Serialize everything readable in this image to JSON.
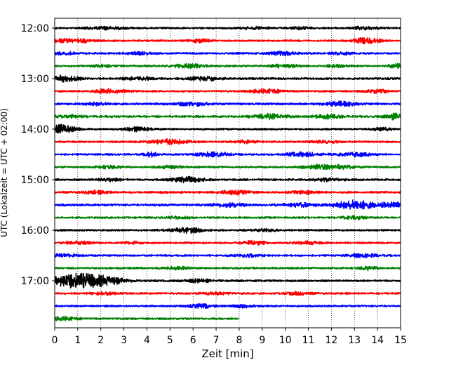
{
  "chart_data": {
    "type": "line",
    "title": "",
    "xlabel": "Zeit  [min]",
    "ylabel": "UTC (Lokalzeit = UTC + 02:00)",
    "xlim": [
      0,
      15
    ],
    "x_ticks": [
      "0",
      "1",
      "2",
      "3",
      "4",
      "5",
      "6",
      "7",
      "8",
      "9",
      "10",
      "11",
      "12",
      "13",
      "14",
      "15"
    ],
    "y_ticks": [
      "12:00",
      "13:00",
      "14:00",
      "15:00",
      "16:00",
      "17:00"
    ],
    "grid": "vertical dotted lines at each minute",
    "legend": "none",
    "colors": [
      "#000000",
      "#ff0000",
      "#0000ff",
      "#008000"
    ],
    "rows_per_hour": 4,
    "row_interval_min": 15,
    "start_time": "12:00",
    "last_row_end_min": 8,
    "rows": [
      {
        "start": "12:00",
        "color": "#000000",
        "noise": 0.9,
        "bursts": [
          [
            2.2,
            1.2,
            0.6
          ],
          [
            8.6,
            1.0,
            0.4
          ],
          [
            10.6,
            1.2,
            0.3
          ],
          [
            13.5,
            1.4,
            0.4
          ]
        ]
      },
      {
        "start": "12:15",
        "color": "#ff0000",
        "noise": 0.9,
        "bursts": [
          [
            0.3,
            1.6,
            0.5
          ],
          [
            1.3,
            1.2,
            0.3
          ],
          [
            6.3,
            1.6,
            0.3
          ],
          [
            13.5,
            2.6,
            0.4
          ]
        ]
      },
      {
        "start": "12:30",
        "color": "#0000ff",
        "noise": 0.9,
        "bursts": [
          [
            0.5,
            1.3,
            0.4
          ],
          [
            3.6,
            1.2,
            0.4
          ],
          [
            9.9,
            1.8,
            0.4
          ],
          [
            12.4,
            1.3,
            0.3
          ]
        ]
      },
      {
        "start": "12:45",
        "color": "#008000",
        "noise": 0.9,
        "bursts": [
          [
            2.2,
            1.2,
            0.4
          ],
          [
            5.8,
            1.8,
            0.5
          ],
          [
            10.0,
            1.8,
            0.4
          ],
          [
            12.2,
            1.2,
            0.3
          ],
          [
            14.9,
            2.0,
            0.3
          ]
        ]
      },
      {
        "start": "13:00",
        "color": "#000000",
        "noise": 1.0,
        "bursts": [
          [
            0.3,
            2.8,
            0.5
          ],
          [
            3.6,
            1.3,
            0.4
          ],
          [
            6.5,
            1.7,
            0.5
          ]
        ]
      },
      {
        "start": "13:15",
        "color": "#ff0000",
        "noise": 0.9,
        "bursts": [
          [
            2.4,
            2.0,
            0.5
          ],
          [
            9.2,
            2.0,
            0.5
          ],
          [
            14.0,
            1.8,
            0.3
          ]
        ]
      },
      {
        "start": "13:30",
        "color": "#0000ff",
        "noise": 1.0,
        "bursts": [
          [
            1.8,
            1.3,
            0.4
          ],
          [
            6.0,
            1.8,
            0.5
          ],
          [
            12.4,
            2.0,
            0.5
          ]
        ]
      },
      {
        "start": "13:45",
        "color": "#008000",
        "noise": 1.0,
        "bursts": [
          [
            0.7,
            1.3,
            0.4
          ],
          [
            9.3,
            2.3,
            0.5
          ],
          [
            11.8,
            2.0,
            0.4
          ],
          [
            14.8,
            3.0,
            0.3
          ]
        ]
      },
      {
        "start": "14:00",
        "color": "#000000",
        "noise": 0.9,
        "bursts": [
          [
            0.3,
            4.2,
            0.4
          ],
          [
            3.6,
            2.0,
            0.4
          ],
          [
            14.2,
            1.2,
            0.3
          ]
        ]
      },
      {
        "start": "14:15",
        "color": "#ff0000",
        "noise": 0.9,
        "bursts": [
          [
            4.9,
            2.5,
            0.6
          ],
          [
            8.3,
            1.2,
            0.4
          ],
          [
            11.7,
            1.3,
            0.4
          ]
        ]
      },
      {
        "start": "14:30",
        "color": "#0000ff",
        "noise": 0.9,
        "bursts": [
          [
            4.2,
            2.3,
            0.2
          ],
          [
            6.9,
            2.2,
            0.5
          ],
          [
            10.7,
            2.0,
            0.5
          ],
          [
            13.0,
            1.8,
            0.5
          ]
        ]
      },
      {
        "start": "14:45",
        "color": "#008000",
        "noise": 0.9,
        "bursts": [
          [
            2.4,
            1.3,
            0.4
          ],
          [
            5.0,
            1.3,
            0.4
          ],
          [
            11.2,
            1.3,
            0.4
          ],
          [
            12.2,
            2.0,
            0.6
          ]
        ]
      },
      {
        "start": "15:00",
        "color": "#000000",
        "noise": 1.0,
        "bursts": [
          [
            2.4,
            1.3,
            0.4
          ],
          [
            5.8,
            2.4,
            0.5
          ],
          [
            11.8,
            1.3,
            0.4
          ]
        ]
      },
      {
        "start": "15:15",
        "color": "#ff0000",
        "noise": 1.0,
        "bursts": [
          [
            1.8,
            1.3,
            0.4
          ],
          [
            7.8,
            1.8,
            0.5
          ],
          [
            10.8,
            1.3,
            0.4
          ]
        ]
      },
      {
        "start": "15:30",
        "color": "#0000ff",
        "noise": 1.1,
        "bursts": [
          [
            7.5,
            1.8,
            0.5
          ],
          [
            10.6,
            1.6,
            0.5
          ],
          [
            13.0,
            4.2,
            0.6
          ],
          [
            14.7,
            2.4,
            0.4
          ]
        ]
      },
      {
        "start": "15:45",
        "color": "#008000",
        "noise": 0.9,
        "bursts": [
          [
            5.3,
            1.3,
            0.4
          ],
          [
            13.0,
            1.3,
            0.4
          ]
        ]
      },
      {
        "start": "16:00",
        "color": "#000000",
        "noise": 0.9,
        "bursts": [
          [
            5.8,
            2.4,
            0.5
          ],
          [
            9.2,
            1.2,
            0.4
          ]
        ]
      },
      {
        "start": "16:15",
        "color": "#ff0000",
        "noise": 0.9,
        "bursts": [
          [
            1.0,
            1.3,
            0.4
          ],
          [
            3.4,
            1.2,
            0.3
          ],
          [
            8.6,
            1.8,
            0.4
          ],
          [
            11.0,
            1.3,
            0.4
          ]
        ]
      },
      {
        "start": "16:30",
        "color": "#0000ff",
        "noise": 0.9,
        "bursts": [
          [
            0.4,
            1.2,
            0.4
          ],
          [
            8.4,
            1.3,
            0.4
          ],
          [
            13.4,
            1.7,
            0.4
          ]
        ]
      },
      {
        "start": "16:45",
        "color": "#008000",
        "noise": 0.9,
        "bursts": [
          [
            5.3,
            1.2,
            0.4
          ],
          [
            13.6,
            1.7,
            0.3
          ]
        ]
      },
      {
        "start": "17:00",
        "color": "#000000",
        "noise": 1.0,
        "bursts": [
          [
            0.5,
            2.6,
            0.6
          ],
          [
            1.3,
            5.5,
            0.8
          ],
          [
            2.4,
            2.0,
            0.5
          ],
          [
            6.3,
            1.8,
            0.3
          ]
        ]
      },
      {
        "start": "17:15",
        "color": "#ff0000",
        "noise": 0.9,
        "bursts": [
          [
            2.1,
            1.3,
            0.4
          ],
          [
            7.0,
            1.2,
            0.4
          ],
          [
            10.5,
            1.3,
            0.4
          ]
        ]
      },
      {
        "start": "17:30",
        "color": "#0000ff",
        "noise": 0.9,
        "bursts": [
          [
            6.4,
            1.7,
            0.4
          ],
          [
            8.2,
            1.3,
            0.3
          ]
        ]
      },
      {
        "start": "17:45",
        "color": "#008000",
        "noise": 0.9,
        "bursts": [
          [
            0.4,
            1.8,
            0.4
          ]
        ]
      }
    ]
  }
}
